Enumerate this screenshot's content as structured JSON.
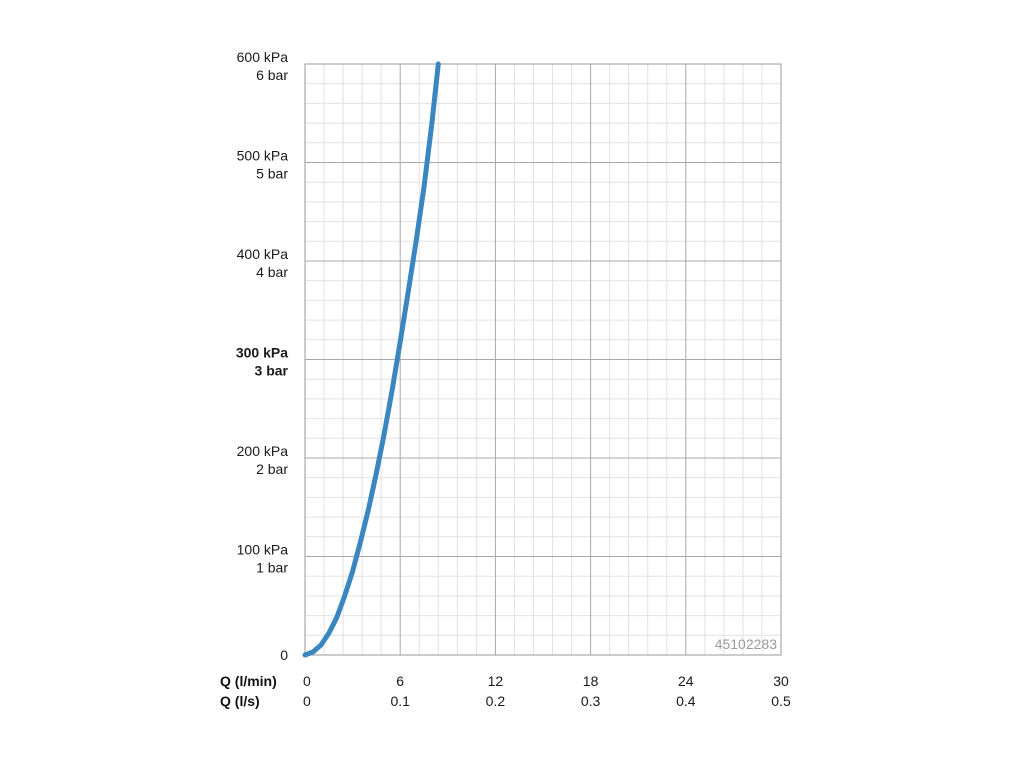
{
  "chart_data": {
    "type": "line",
    "title": "",
    "product_code": "45102283",
    "x_axis": {
      "rows": [
        {
          "label": "Q (l/min)",
          "ticks": [
            "0",
            "6",
            "12",
            "18",
            "24",
            "30"
          ]
        },
        {
          "label": "Q (l/s)",
          "ticks": [
            "0",
            "0.1",
            "0.2",
            "0.3",
            "0.4",
            "0.5"
          ]
        }
      ],
      "unit": "l/min",
      "min": 0,
      "max": 30,
      "major_step": 6,
      "minor_step": 1.2
    },
    "y_axis": {
      "ticks": [
        {
          "value": 0,
          "line1": "0",
          "line2": "",
          "bold": false
        },
        {
          "value": 100,
          "line1": "100 kPa",
          "line2": "1 bar",
          "bold": false
        },
        {
          "value": 200,
          "line1": "200 kPa",
          "line2": "2 bar",
          "bold": false
        },
        {
          "value": 300,
          "line1": "300 kPa",
          "line2": "3 bar",
          "bold": true
        },
        {
          "value": 400,
          "line1": "400 kPa",
          "line2": "4 bar",
          "bold": false
        },
        {
          "value": 500,
          "line1": "500 kPa",
          "line2": "5 bar",
          "bold": false
        },
        {
          "value": 600,
          "line1": "600 kPa",
          "line2": "6 bar",
          "bold": false
        }
      ],
      "unit": "kPa",
      "min": 0,
      "max": 600,
      "major_step": 100,
      "minor_step": 20
    },
    "grid": true,
    "series": [
      {
        "color": "#3a86c0",
        "x": [
          0,
          0.5,
          1,
          1.5,
          2,
          2.5,
          3,
          3.5,
          4,
          4.5,
          5,
          5.5,
          6,
          6.5,
          7,
          7.5,
          8,
          8.4
        ],
        "y": [
          0,
          3,
          10,
          22,
          38,
          60,
          85,
          115,
          148,
          185,
          225,
          270,
          318,
          368,
          420,
          475,
          540,
          600
        ]
      }
    ]
  }
}
